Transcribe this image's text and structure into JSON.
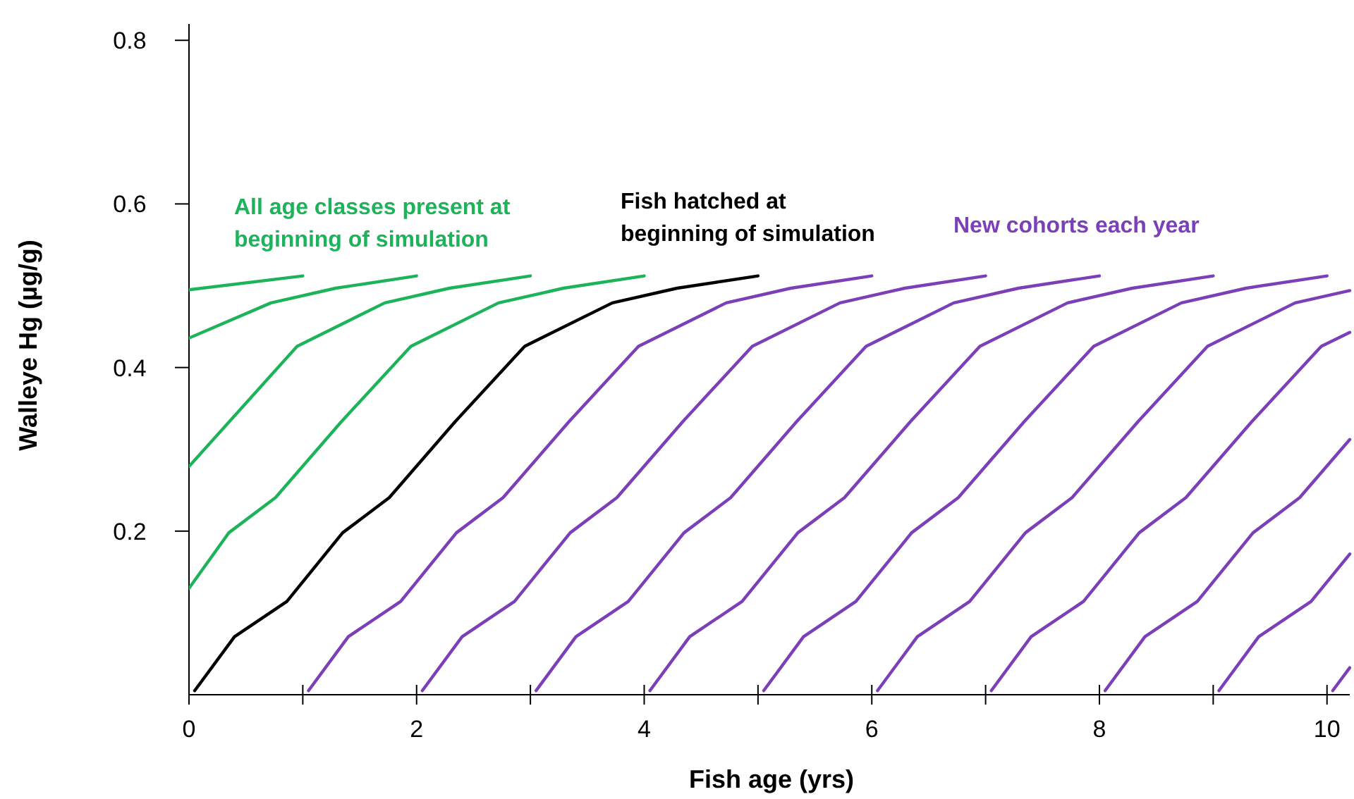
{
  "chart_data": {
    "type": "line",
    "xlabel": "Fish age (yrs)",
    "ylabel": "Walleye Hg (µg/g)",
    "xlim": [
      0,
      10.2
    ],
    "ylim": [
      0,
      0.82
    ],
    "xticks": [
      0,
      {
        "value": 1,
        "label": null
      },
      2,
      {
        "value": 3,
        "label": null
      },
      4,
      {
        "value": 5,
        "label": null
      },
      6,
      {
        "value": 7,
        "label": null
      },
      8,
      {
        "value": 9,
        "label": null
      },
      10
    ],
    "yticks": [
      0.2,
      0.4,
      0.6,
      0.8
    ],
    "grid": false,
    "marker": "none",
    "line_style": "solid",
    "annotations": [
      "All age classes present at\nbeginning of simulation",
      "Fish hatched at\nbeginning of simulation",
      "New cohorts each year"
    ],
    "series": [
      {
        "color": "#1db35a",
        "x": [
          0,
          0.35,
          0.76,
          1.34,
          1.95,
          2.72,
          3.29,
          4.0
        ],
        "values": [
          0.13,
          0.198,
          0.241,
          0.334,
          0.426,
          0.479,
          0.497,
          0.512
        ]
      },
      {
        "color": "#1db35a",
        "x": [
          0,
          0.95,
          1.72,
          2.29,
          3.0
        ],
        "values": [
          0.279,
          0.426,
          0.479,
          0.497,
          0.512
        ]
      },
      {
        "color": "#1db35a",
        "x": [
          0,
          0.72,
          1.29,
          2.0
        ],
        "values": [
          0.436,
          0.479,
          0.497,
          0.512
        ]
      },
      {
        "color": "#1db35a",
        "x": [
          0,
          1.0
        ],
        "values": [
          0.495,
          0.512
        ]
      },
      {
        "color": "#000000",
        "x": [
          0.05,
          0.4,
          0.86,
          1.35,
          1.76,
          2.34,
          2.95,
          3.72,
          4.29,
          5.0
        ],
        "values": [
          0.005,
          0.071,
          0.114,
          0.198,
          0.241,
          0.334,
          0.426,
          0.479,
          0.497,
          0.512
        ]
      },
      {
        "color": "#7b3fb8",
        "x": [
          1.05,
          1.4,
          1.86,
          2.35,
          2.76,
          3.34,
          3.95,
          4.72,
          5.29,
          6.0
        ],
        "values": [
          0.005,
          0.071,
          0.114,
          0.198,
          0.241,
          0.334,
          0.426,
          0.479,
          0.497,
          0.512
        ]
      },
      {
        "color": "#7b3fb8",
        "x": [
          2.05,
          2.4,
          2.86,
          3.35,
          3.76,
          4.34,
          4.95,
          5.72,
          6.29,
          7.0
        ],
        "values": [
          0.005,
          0.071,
          0.114,
          0.198,
          0.241,
          0.334,
          0.426,
          0.479,
          0.497,
          0.512
        ]
      },
      {
        "color": "#7b3fb8",
        "x": [
          3.05,
          3.4,
          3.86,
          4.35,
          4.76,
          5.34,
          5.95,
          6.72,
          7.29,
          8.0
        ],
        "values": [
          0.005,
          0.071,
          0.114,
          0.198,
          0.241,
          0.334,
          0.426,
          0.479,
          0.497,
          0.512
        ]
      },
      {
        "color": "#7b3fb8",
        "x": [
          4.05,
          4.4,
          4.86,
          5.35,
          5.76,
          6.34,
          6.95,
          7.72,
          8.29,
          9.0
        ],
        "values": [
          0.005,
          0.071,
          0.114,
          0.198,
          0.241,
          0.334,
          0.426,
          0.479,
          0.497,
          0.512
        ]
      },
      {
        "color": "#7b3fb8",
        "x": [
          5.05,
          5.4,
          5.86,
          6.35,
          6.76,
          7.34,
          7.95,
          8.72,
          9.29,
          10.0
        ],
        "values": [
          0.005,
          0.071,
          0.114,
          0.198,
          0.241,
          0.334,
          0.426,
          0.479,
          0.497,
          0.512
        ]
      },
      {
        "color": "#7b3fb8",
        "x": [
          6.05,
          6.4,
          6.86,
          7.35,
          7.76,
          8.34,
          8.95,
          9.72,
          10.2
        ],
        "values": [
          0.005,
          0.071,
          0.114,
          0.198,
          0.241,
          0.334,
          0.426,
          0.479,
          0.494
        ]
      },
      {
        "color": "#7b3fb8",
        "x": [
          7.05,
          7.4,
          7.86,
          8.35,
          8.76,
          9.34,
          9.95,
          10.2
        ],
        "values": [
          0.005,
          0.071,
          0.114,
          0.198,
          0.241,
          0.334,
          0.426,
          0.443
        ]
      },
      {
        "color": "#7b3fb8",
        "x": [
          8.05,
          8.4,
          8.86,
          9.35,
          9.76,
          10.2
        ],
        "values": [
          0.005,
          0.071,
          0.114,
          0.198,
          0.241,
          0.312
        ]
      },
      {
        "color": "#7b3fb8",
        "x": [
          9.05,
          9.4,
          9.86,
          10.2
        ],
        "values": [
          0.005,
          0.071,
          0.114,
          0.172
        ]
      },
      {
        "color": "#7b3fb8",
        "x": [
          10.05,
          10.2
        ],
        "values": [
          0.005,
          0.033
        ]
      }
    ]
  }
}
